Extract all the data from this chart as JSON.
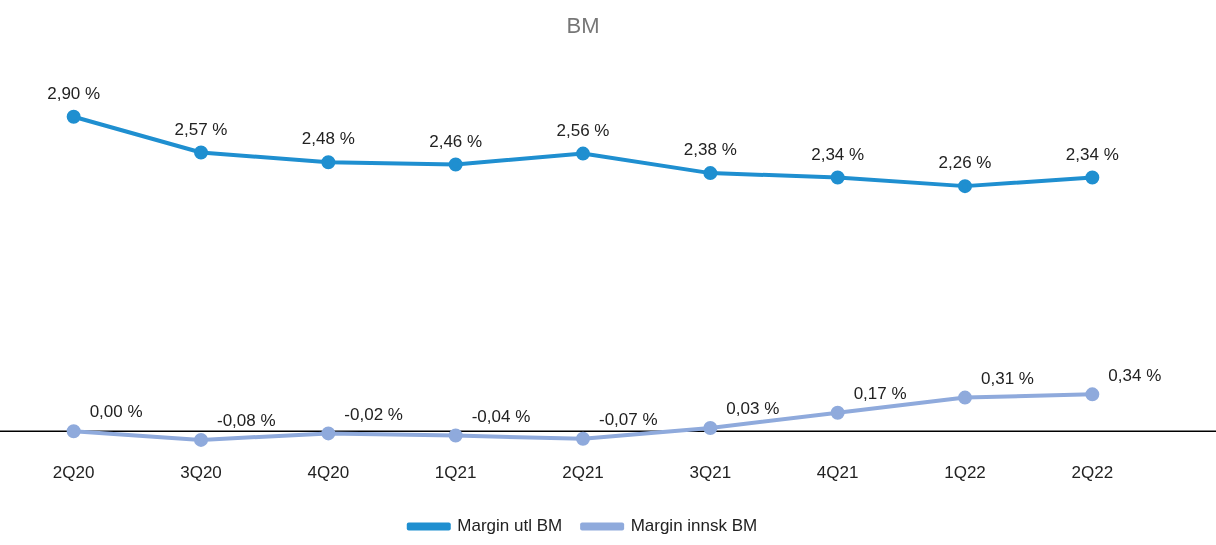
{
  "chart_data": {
    "type": "line",
    "title": "BM",
    "categories": [
      "2Q20",
      "3Q20",
      "4Q20",
      "1Q21",
      "2Q21",
      "3Q21",
      "4Q21",
      "1Q22",
      "2Q22"
    ],
    "series": [
      {
        "name": "Margin utl BM",
        "color": "#1f8fd0",
        "values": [
          2.9,
          2.57,
          2.48,
          2.46,
          2.56,
          2.38,
          2.34,
          2.26,
          2.34
        ],
        "value_labels": [
          "2,90 %",
          "2,57 %",
          "2,48 %",
          "2,46 %",
          "2,56 %",
          "2,38 %",
          "2,34 %",
          "2,26 %",
          "2,34 %"
        ]
      },
      {
        "name": "Margin innsk BM",
        "color": "#8faadc",
        "values": [
          0.0,
          -0.08,
          -0.02,
          -0.04,
          -0.07,
          0.03,
          0.17,
          0.31,
          0.34
        ],
        "value_labels": [
          "0,00 %",
          "-0,08 %",
          "-0,02 %",
          "-0,04 %",
          "-0,07 %",
          "0,03 %",
          "0,17 %",
          "0,31 %",
          "0,34 %"
        ]
      }
    ],
    "grid": false,
    "legend": "bottom",
    "marker": "circle",
    "line_style": "solid",
    "tick_labels": "x"
  }
}
